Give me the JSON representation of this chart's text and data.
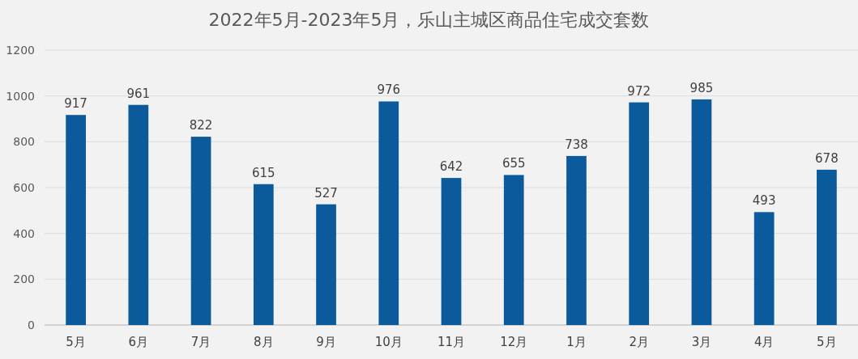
{
  "chart_data": {
    "type": "bar",
    "title": "2022年5月-2023年5月，乐山主城区商品住宅成交套数",
    "categories": [
      "5月",
      "6月",
      "7月",
      "8月",
      "9月",
      "10月",
      "11月",
      "12月",
      "1月",
      "2月",
      "3月",
      "4月",
      "5月"
    ],
    "values": [
      917,
      961,
      822,
      615,
      527,
      976,
      642,
      655,
      738,
      972,
      985,
      493,
      678
    ],
    "color": "#0a5a9c",
    "ylim": [
      0,
      1200
    ],
    "yticks": [
      0,
      200,
      400,
      600,
      800,
      1000,
      1200
    ],
    "grid": "y",
    "data_labels": true
  }
}
